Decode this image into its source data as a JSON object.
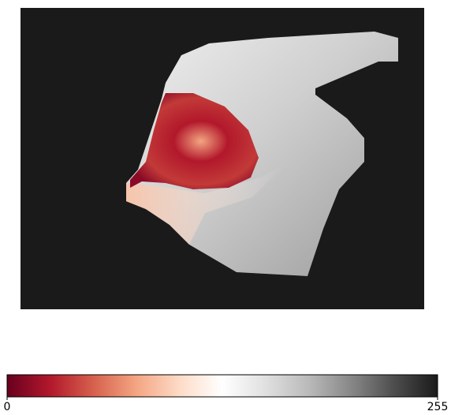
{
  "chart_data": {
    "type": "image",
    "colormap": [
      "#67001f",
      "#b2182b",
      "#d6604d",
      "#f4a582",
      "#fddbc7",
      "#ffffff",
      "#e0e0e0",
      "#bababa",
      "#878787",
      "#4d4d4d",
      "#1a1a1a"
    ],
    "clim": [
      0,
      255
    ],
    "cticks": [
      0,
      255
    ]
  }
}
